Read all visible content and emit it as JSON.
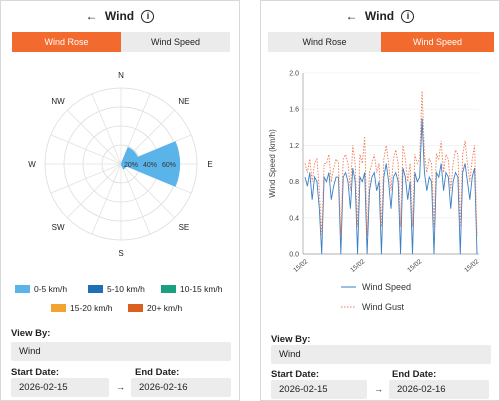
{
  "panel_left": {
    "header": {
      "back": "←",
      "title": "Wind",
      "info": "i"
    },
    "tabs": [
      {
        "label": "Wind Rose",
        "active": true
      },
      {
        "label": "Wind Speed",
        "active": false
      }
    ],
    "directions": [
      "N",
      "NE",
      "E",
      "SE",
      "S",
      "SW",
      "W",
      "NW"
    ],
    "rings": [
      "20%",
      "40%",
      "60%"
    ],
    "legend": [
      {
        "label": "0-5 km/h",
        "color": "#5ab4ea"
      },
      {
        "label": "5-10 km/h",
        "color": "#1f6fb5"
      },
      {
        "label": "10-15 km/h",
        "color": "#1aa081"
      },
      {
        "label": "15-20 km/h",
        "color": "#f2a431"
      },
      {
        "label": "20+ km/h",
        "color": "#d8611f"
      }
    ],
    "view_by": {
      "label": "View By:",
      "value": "Wind"
    },
    "start_date": {
      "label": "Start Date:",
      "value": "2026-02-15"
    },
    "end_date": {
      "label": "End Date:",
      "value": "2026-02-16"
    },
    "arrow": "→"
  },
  "panel_right": {
    "header": {
      "back": "←",
      "title": "Wind",
      "info": "i"
    },
    "tabs": [
      {
        "label": "Wind Rose",
        "active": false
      },
      {
        "label": "Wind Speed",
        "active": true
      }
    ],
    "legend": [
      {
        "label": "Wind Speed"
      },
      {
        "label": "Wind Gust"
      }
    ],
    "view_by": {
      "label": "View By:",
      "value": "Wind"
    },
    "start_date": {
      "label": "Start Date:",
      "value": "2026-02-15"
    },
    "end_date": {
      "label": "End Date:",
      "value": "2026-02-16"
    },
    "arrow": "→"
  },
  "chart_data": [
    {
      "type": "polar-bar",
      "title": "",
      "directions": [
        "N",
        "NE",
        "E",
        "SE",
        "S",
        "SW",
        "W",
        "NW"
      ],
      "ring_labels": [
        "20%",
        "40%",
        "60%"
      ],
      "rmax": 80,
      "series": [
        {
          "name": "0-5 km/h",
          "values": [
            0,
            19,
            62,
            6,
            0,
            0,
            0,
            0
          ]
        }
      ]
    },
    {
      "type": "line",
      "xlabel": "",
      "ylabel": "Wind Speed (km/h)",
      "ylim": [
        0,
        2.0
      ],
      "yticks": [
        "0.0",
        "0.4",
        "0.8",
        "1.2",
        "1.6",
        "2.0"
      ],
      "xticks": [
        "15/02",
        "15/02",
        "15/02",
        "15/02"
      ],
      "series": [
        {
          "name": "Wind Speed",
          "color": "#3b7fc4",
          "values": [
            0.85,
            0.75,
            0.9,
            0.6,
            0.85,
            0.8,
            0.5,
            0.0,
            0.85,
            0.8,
            0.9,
            0.6,
            0.75,
            0.85,
            0.85,
            0.0,
            0.85,
            0.9,
            0.8,
            0.5,
            0.95,
            0.8,
            0.0,
            0.85,
            0.8,
            0.9,
            0.0,
            0.7,
            0.85,
            0.9,
            0.7,
            0.8,
            0.0,
            0.85,
            1.0,
            0.8,
            0.5,
            0.85,
            0.9,
            0.8,
            0.0,
            0.95,
            0.85,
            0.6,
            0.8,
            0.0,
            0.9,
            0.8,
            0.85,
            1.5,
            0.9,
            0.7,
            0.85,
            0.8,
            0.0,
            0.9,
            0.85,
            1.0,
            0.7,
            0.9,
            0.85,
            0.5,
            0.8,
            0.9,
            0.85,
            0.0,
            0.9,
            1.0,
            0.8,
            0.6,
            0.85,
            0.95,
            0.0
          ]
        },
        {
          "name": "Wind Gust",
          "color": "#f07a50",
          "values": [
            1.0,
            0.9,
            1.05,
            0.8,
            1.0,
            1.05,
            0.7,
            0.2,
            1.0,
            1.0,
            1.1,
            0.8,
            0.95,
            1.05,
            1.0,
            0.2,
            1.05,
            1.1,
            1.0,
            0.7,
            1.2,
            1.0,
            0.3,
            1.1,
            1.0,
            1.3,
            0.2,
            0.9,
            1.0,
            1.1,
            0.9,
            1.0,
            0.3,
            1.05,
            1.2,
            1.0,
            0.7,
            1.05,
            1.15,
            1.0,
            0.3,
            1.2,
            1.05,
            0.8,
            1.0,
            0.3,
            1.1,
            1.0,
            1.05,
            1.8,
            1.1,
            0.9,
            1.05,
            1.0,
            0.3,
            1.1,
            1.05,
            1.25,
            0.9,
            1.1,
            1.05,
            0.7,
            1.0,
            1.15,
            1.1,
            0.3,
            1.1,
            1.25,
            1.0,
            0.8,
            1.05,
            1.2,
            0.2
          ]
        }
      ]
    }
  ]
}
